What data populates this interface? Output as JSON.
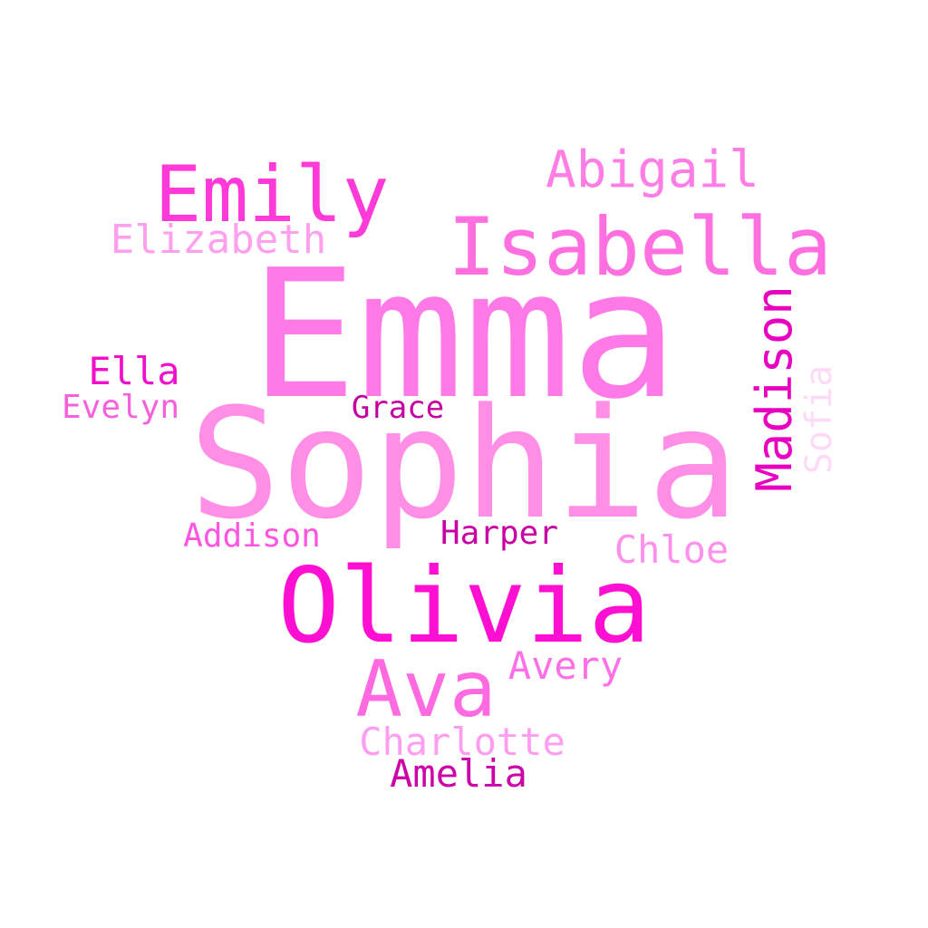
{
  "words": {
    "emma": {
      "text": "Emma",
      "color": "#ff7ae6"
    },
    "sophia": {
      "text": "Sophia",
      "color": "#ff8fe6"
    },
    "olivia": {
      "text": "Olivia",
      "color": "#ff0fd2"
    },
    "isabella": {
      "text": "Isabella",
      "color": "#ff6fe0"
    },
    "emily": {
      "text": "Emily",
      "color": "#ff3ad8"
    },
    "ava": {
      "text": "Ava",
      "color": "#ff6ae0"
    },
    "abigail": {
      "text": "Abigail",
      "color": "#ff7ee6"
    },
    "madison": {
      "text": "Madison",
      "color": "#e800c0"
    },
    "elizabeth": {
      "text": "Elizabeth",
      "color": "#ffa0ee"
    },
    "charlotte": {
      "text": "Charlotte",
      "color": "#ff9ef0"
    },
    "amelia": {
      "text": "Amelia",
      "color": "#cc00a8"
    },
    "avery": {
      "text": "Avery",
      "color": "#ff6fe6"
    },
    "chloe": {
      "text": "Chloe",
      "color": "#ff90ec"
    },
    "ella": {
      "text": "Ella",
      "color": "#f010cc"
    },
    "evelyn": {
      "text": "Evelyn",
      "color": "#f75fdc"
    },
    "addison": {
      "text": "Addison",
      "color": "#ff55e0"
    },
    "harper": {
      "text": "Harper",
      "color": "#c800a4"
    },
    "grace": {
      "text": "Grace",
      "color": "#c400a0"
    },
    "sofia": {
      "text": "Sofia",
      "color": "#ffdaf6"
    }
  }
}
